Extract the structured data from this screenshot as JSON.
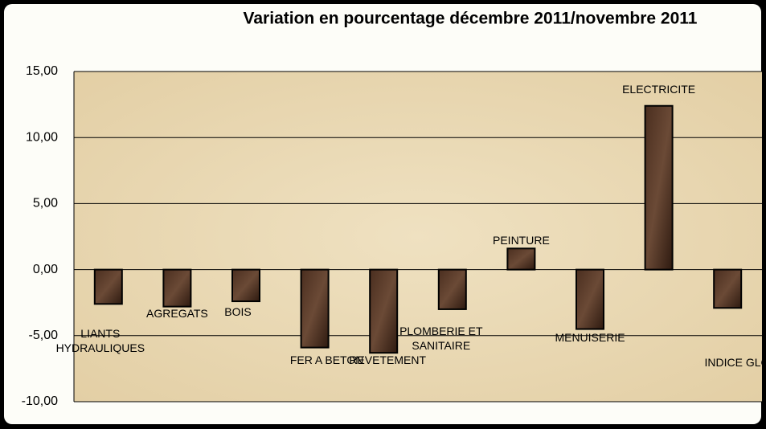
{
  "chart_data": {
    "type": "bar",
    "title": "Variation  en pourcentage décembre 2011/novembre 2011",
    "categories": [
      "LIANTS\nHYDRAULIQUES",
      "AGREGATS",
      "BOIS",
      "FER A BETON",
      "REVETEMENT",
      "PLOMBERIE ET\nSANITAIRE",
      "PEINTURE",
      "MENUISERIE",
      "ELECTRICITE",
      "INDICE GLOBAL"
    ],
    "values": [
      -2.6,
      -2.8,
      -2.4,
      -5.9,
      -6.3,
      -3.0,
      1.6,
      -4.5,
      12.4,
      -2.9
    ],
    "color": "#3b2418",
    "ylim": [
      -10,
      15
    ],
    "yticks": [
      {
        "value": -10,
        "label": "-10,00"
      },
      {
        "value": -5,
        "label": "-5,00"
      },
      {
        "value": 0,
        "label": "0,00"
      },
      {
        "value": 5,
        "label": "5,00"
      },
      {
        "value": 10,
        "label": "10,00"
      },
      {
        "value": 15,
        "label": "15,00"
      }
    ],
    "grid": true
  }
}
